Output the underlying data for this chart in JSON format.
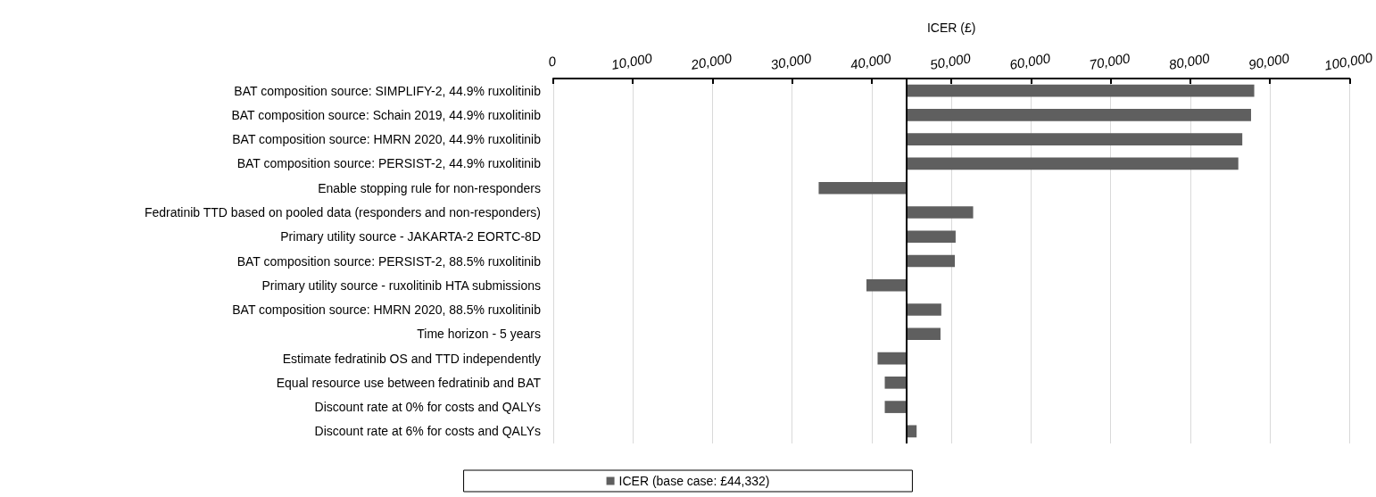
{
  "chart_data": {
    "type": "bar",
    "orientation": "horizontal",
    "xlabel": "ICER (£)",
    "categories": [
      "BAT composition source: SIMPLIFY-2, 44.9% ruxolitinib",
      "BAT composition source: Schain 2019, 44.9% ruxolitinib",
      "BAT composition source: HMRN 2020, 44.9% ruxolitinib",
      "BAT composition source: PERSIST-2, 44.9% ruxolitinib",
      "Enable stopping rule for non-responders",
      "Fedratinib TTD based on pooled data (responders and non-responders)",
      "Primary utility source - JAKARTA-2 EORTC-8D",
      "BAT composition source: PERSIST-2, 88.5% ruxolitinib",
      "Primary utility source - ruxolitinib HTA submissions",
      "BAT composition source: HMRN 2020, 88.5% ruxolitinib",
      "Time horizon - 5 years",
      "Estimate fedratinib OS and TTD independently",
      "Equal resource use between fedratinib and BAT",
      "Discount rate at 0% for costs and QALYs",
      "Discount rate at 6% for costs and QALYs"
    ],
    "series": [
      {
        "name": "ICER (base case: £44,332)",
        "color": "#5f5f5f",
        "values": [
          43700,
          43300,
          42200,
          41700,
          -11000,
          8400,
          6200,
          6100,
          -5000,
          4400,
          4300,
          -3600,
          -2700,
          -2700,
          1300
        ],
        "base": [
          44332,
          44332,
          44332,
          44332,
          44332,
          44332,
          44332,
          44332,
          44332,
          44332,
          44332,
          44332,
          44332,
          44332,
          44332
        ]
      }
    ],
    "xlim": [
      0,
      100000
    ],
    "xticks": [
      0,
      {
        "value": 10000,
        "label": "10,000"
      },
      {
        "value": 20000,
        "label": "20,000"
      },
      {
        "value": 30000,
        "label": "30,000"
      },
      {
        "value": 40000,
        "label": "40,000"
      },
      {
        "value": 50000,
        "label": "50,000"
      },
      {
        "value": 60000,
        "label": "60,000"
      },
      {
        "value": 70000,
        "label": "70,000"
      },
      {
        "value": 80000,
        "label": "80,000"
      },
      {
        "value": 90000,
        "label": "90,000"
      },
      {
        "value": 100000,
        "label": "100,000"
      }
    ],
    "ref_lines": [
      {
        "axis": "x",
        "value": 44332,
        "label": null,
        "color": "#000000"
      }
    ],
    "grid": "x",
    "legend": "bottom"
  }
}
